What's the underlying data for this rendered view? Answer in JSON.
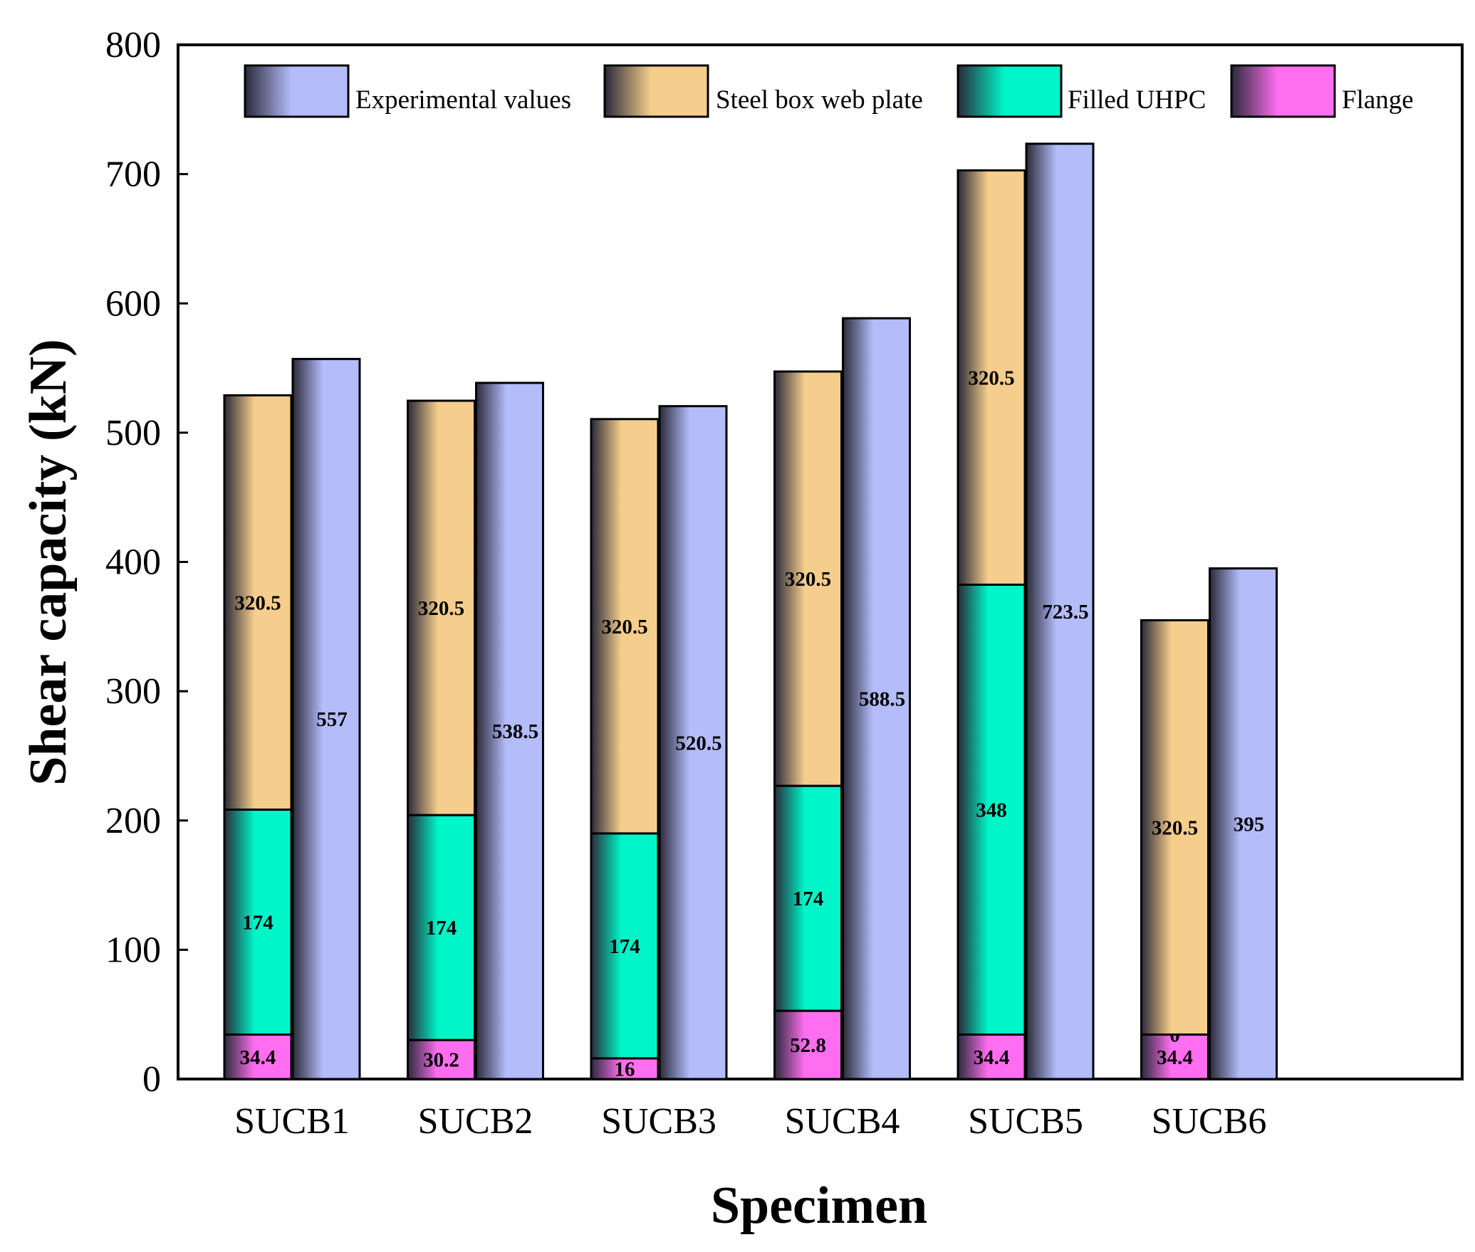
{
  "chart_data": {
    "type": "bar",
    "stacked": true,
    "title": "",
    "xlabel": "Specimen",
    "ylabel": "Shear capacity (kN)",
    "ylim": [
      0,
      800
    ],
    "yticks": [
      0,
      100,
      200,
      300,
      400,
      500,
      600,
      700,
      800
    ],
    "categories": [
      "SUCB1",
      "SUCB2",
      "SUCB3",
      "SUCB4",
      "SUCB5",
      "SUCB6"
    ],
    "legend_position": "top",
    "stack_series": [
      {
        "name": "Flange",
        "color": "#ff6ef0",
        "values": [
          34.4,
          30.2,
          16,
          52.8,
          34.4,
          34.4
        ],
        "labels": [
          "34.4",
          "30.2",
          "16",
          "52.8",
          "34.4",
          "34.4"
        ]
      },
      {
        "name": "Filled UHPC",
        "color": "#00f5c8",
        "values": [
          174,
          174,
          174,
          174,
          348,
          0
        ],
        "labels": [
          "174",
          "174",
          "174",
          "174",
          "348",
          "0"
        ]
      },
      {
        "name": "Steel box web plate",
        "color": "#f5cd8c",
        "values": [
          320.5,
          320.5,
          320.5,
          320.5,
          320.5,
          320.5
        ],
        "labels": [
          "320.5",
          "320.5",
          "320.5",
          "320.5",
          "320.5",
          "320.5"
        ]
      }
    ],
    "experimental_series": {
      "name": "Experimental values",
      "color": "#b4bcfa",
      "values": [
        557,
        538.5,
        520.5,
        588.5,
        723.5,
        395
      ],
      "labels": [
        "557",
        "538.5",
        "520.5",
        "588.5",
        "723.5",
        "395"
      ]
    },
    "legend": [
      {
        "name": "Experimental values",
        "color": "#b4bcfa"
      },
      {
        "name": "Steel box web plate",
        "color": "#f5cd8c"
      },
      {
        "name": "Filled UHPC",
        "color": "#00f5c8"
      },
      {
        "name": "Flange",
        "color": "#ff6ef0"
      }
    ]
  }
}
